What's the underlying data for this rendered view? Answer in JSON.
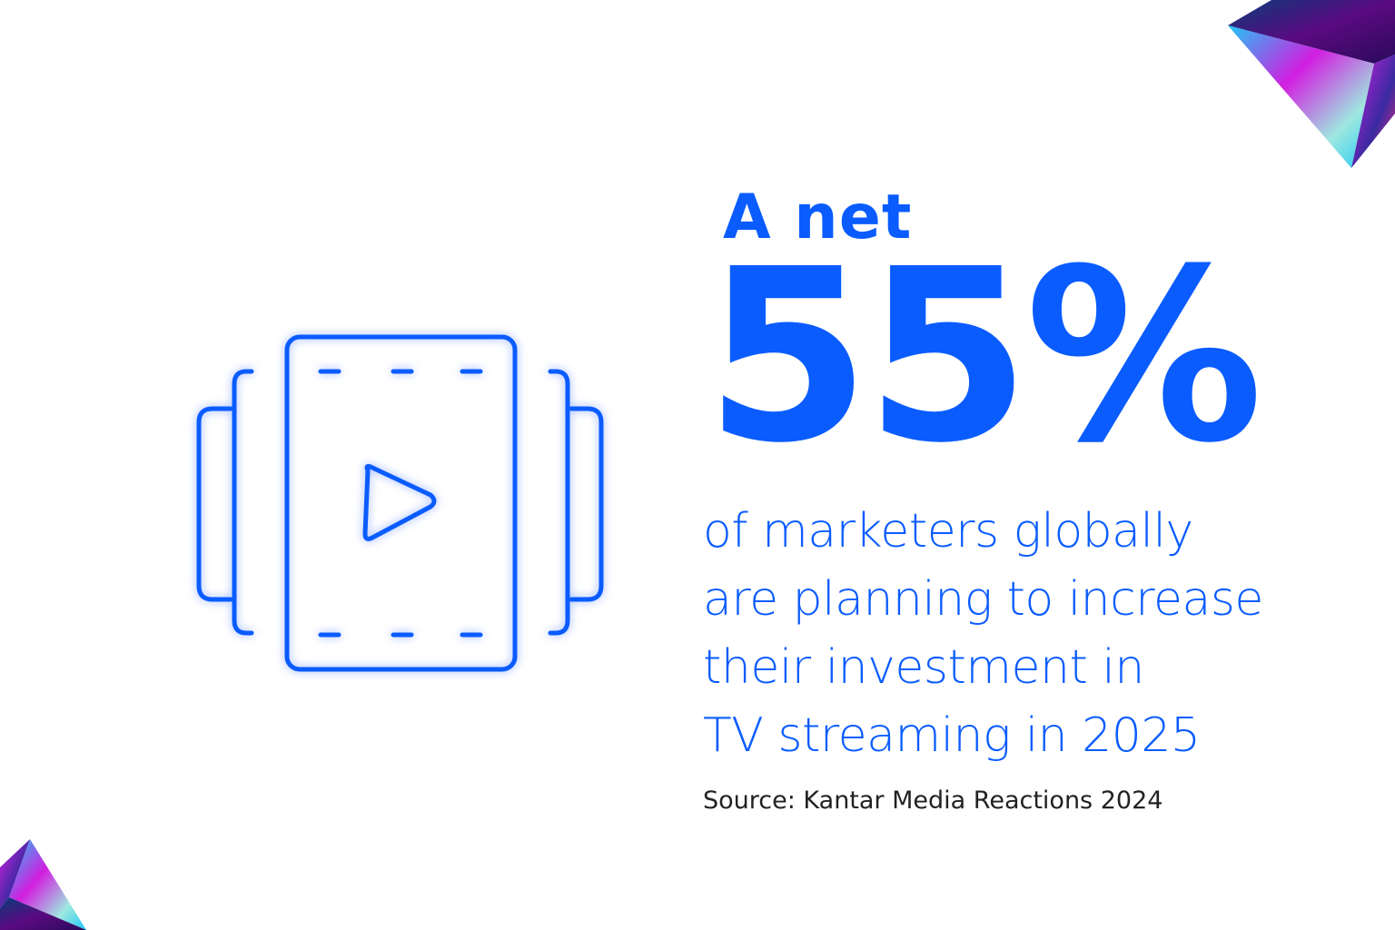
{
  "headline": {
    "lead": "A net",
    "stat": "55%"
  },
  "description": {
    "lines": [
      "of marketers globally",
      "are planning to increase",
      "their investment in",
      "TV streaming in 2025"
    ]
  },
  "source": "Source: Kantar Media Reactions 2024",
  "icon": "video-film-strip-play-icon",
  "colors": {
    "accent": "#0a5cff",
    "source_text": "#222222",
    "gem_cyan": "#1ec8f5",
    "gem_magenta": "#d21ee0",
    "gem_purple": "#4a0a78"
  }
}
